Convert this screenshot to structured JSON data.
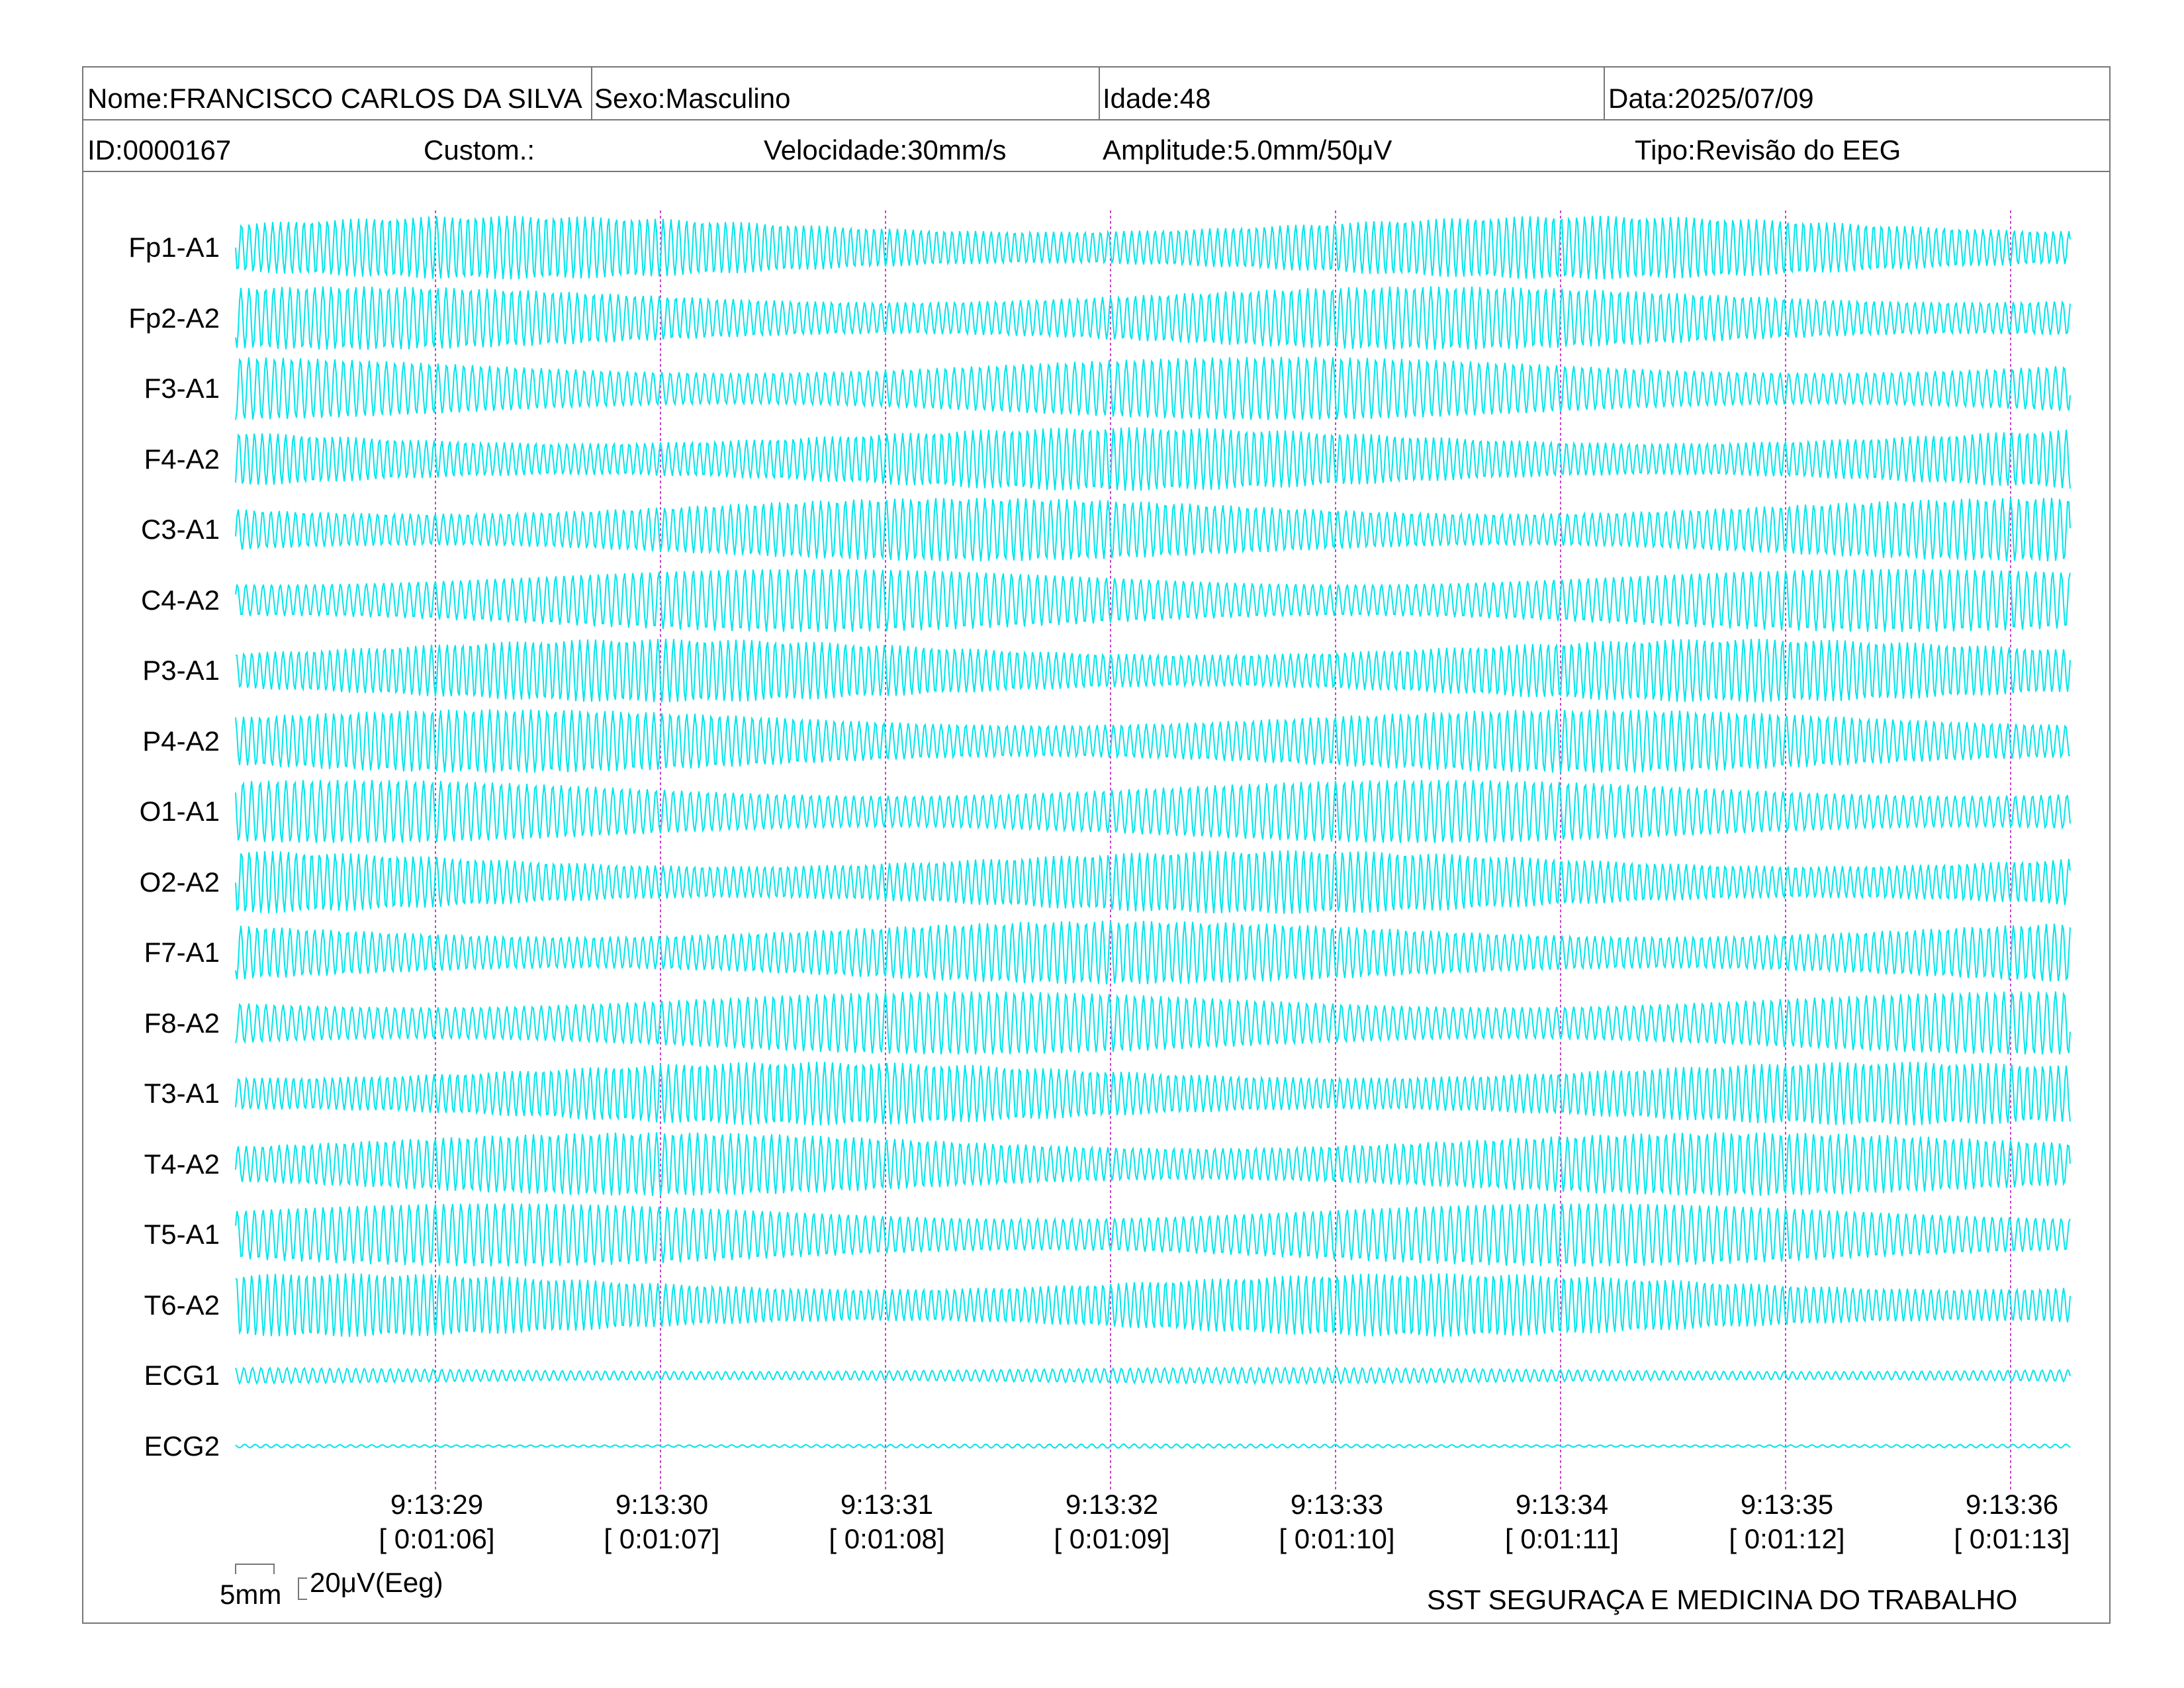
{
  "header": {
    "row1": {
      "nome": "Nome:FRANCISCO CARLOS DA SILVA",
      "sexo": "Sexo:Masculino",
      "idade": "Idade:48",
      "data": "Data:2025/07/09"
    },
    "row2": {
      "id": "ID:0000167",
      "custom": "Custom.:",
      "velocidade": "Velocidade:30mm/s",
      "amplitude": "Amplitude:5.0mm/50μV",
      "tipo": "Tipo:Revisão do EEG"
    }
  },
  "channels": [
    "Fp1-A1",
    "Fp2-A2",
    "F3-A1",
    "F4-A2",
    "C3-A1",
    "C4-A2",
    "P3-A1",
    "P4-A2",
    "O1-A1",
    "O2-A2",
    "F7-A1",
    "F8-A2",
    "T3-A1",
    "T4-A2",
    "T5-A1",
    "T6-A2",
    "ECG1",
    "ECG2"
  ],
  "time_markers": [
    {
      "clock": "9:13:29",
      "elapsed": "[ 0:01:06]"
    },
    {
      "clock": "9:13:30",
      "elapsed": "[ 0:01:07]"
    },
    {
      "clock": "9:13:31",
      "elapsed": "[ 0:01:08]"
    },
    {
      "clock": "9:13:32",
      "elapsed": "[ 0:01:09]"
    },
    {
      "clock": "9:13:33",
      "elapsed": "[ 0:01:10]"
    },
    {
      "clock": "9:13:34",
      "elapsed": "[ 0:01:11]"
    },
    {
      "clock": "9:13:35",
      "elapsed": "[ 0:01:12]"
    },
    {
      "clock": "9:13:36",
      "elapsed": "[ 0:01:13]"
    }
  ],
  "scale": {
    "time_label": "5mm",
    "amp_label": "20μV(Eeg)"
  },
  "footer": {
    "company": "SST SEGURAÇA E MEDICINA DO TRABALHO"
  },
  "colors": {
    "trace": "#00e5ea",
    "marker": "#cc44cc",
    "border": "#777777"
  }
}
